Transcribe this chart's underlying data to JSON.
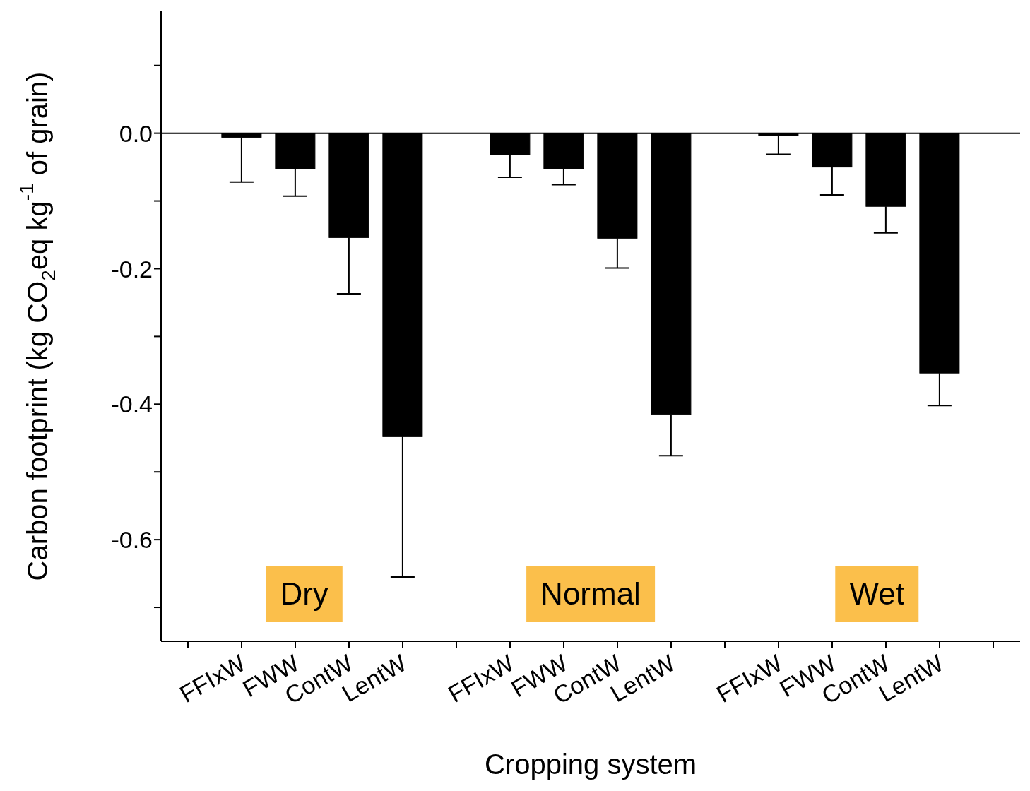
{
  "chart_data": {
    "type": "bar",
    "xlabel": "Cropping system",
    "ylabel": "Carbon footprint (kg CO$_{2}$eq kg$^{-1}$ of grain)",
    "categories": [
      null,
      "FFIxW",
      "FWW",
      "ContW",
      "LentW",
      null,
      "FFIxW",
      "FWW",
      "ContW",
      "LentW",
      null,
      "FFIxW",
      "FWW",
      "ContW",
      "LentW",
      null
    ],
    "series": [
      {
        "color": "#000000",
        "values": [
          null,
          -0.006,
          -0.052,
          -0.154,
          -0.448,
          null,
          -0.032,
          -0.052,
          -0.155,
          -0.415,
          null,
          -0.003,
          -0.05,
          -0.108,
          -0.354,
          null
        ],
        "errors": [
          null,
          [
            -0.072,
            -0.006
          ],
          [
            -0.093,
            -0.052
          ],
          [
            -0.237,
            -0.154
          ],
          [
            -0.655,
            -0.448
          ],
          null,
          [
            -0.065,
            -0.032
          ],
          [
            -0.076,
            -0.052
          ],
          [
            -0.199,
            -0.155
          ],
          [
            -0.476,
            -0.415
          ],
          null,
          [
            -0.031,
            -0.003
          ],
          [
            -0.091,
            -0.05
          ],
          [
            -0.147,
            -0.108
          ],
          [
            -0.402,
            -0.354
          ],
          null
        ]
      }
    ],
    "ylim": [
      -0.75,
      0.18
    ],
    "yticks": [
      {
        "value": -0.7,
        "label": null
      },
      {
        "value": -0.6,
        "label": "-0.6"
      },
      {
        "value": -0.5,
        "label": null
      },
      {
        "value": -0.4,
        "label": "-0.4"
      },
      {
        "value": -0.3,
        "label": null
      },
      {
        "value": -0.2,
        "label": "-0.2"
      },
      {
        "value": -0.1,
        "label": null
      },
      {
        "value": 0,
        "label": "0.0"
      },
      {
        "value": 0.1,
        "label": null
      }
    ],
    "ref_lines": [
      {
        "axis": "y",
        "value": 0,
        "color": "#000000"
      }
    ],
    "annotations": [
      "Dry",
      "Normal",
      "Wet"
    ],
    "grid": false,
    "legend": false
  }
}
